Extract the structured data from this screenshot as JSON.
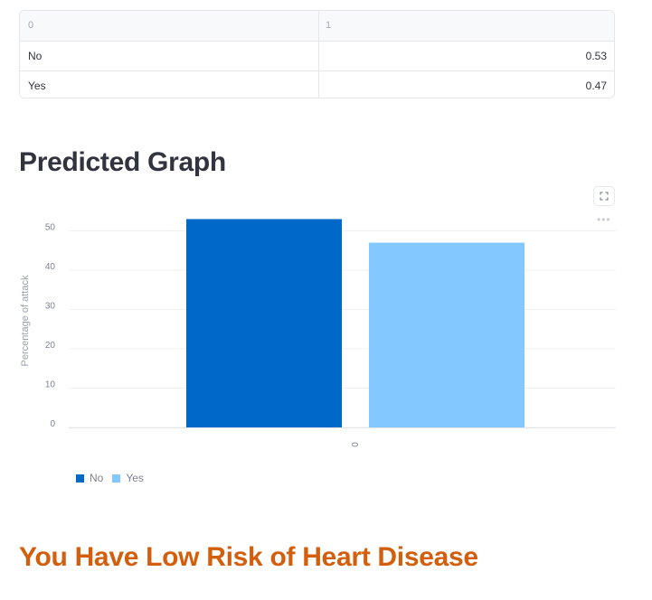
{
  "table": {
    "headers": [
      "0",
      "1"
    ],
    "rows": [
      {
        "label": "No",
        "value": "0.53"
      },
      {
        "label": "Yes",
        "value": "0.47"
      }
    ]
  },
  "graph_heading": "Predicted Graph",
  "result_heading": "You Have Low Risk of Heart Disease",
  "icons": {
    "fullscreen": "fullscreen-icon",
    "menu": "more-horizontal-icon"
  },
  "chart_data": {
    "type": "bar",
    "categories": [
      "0"
    ],
    "series": [
      {
        "name": "No",
        "values": [
          53
        ],
        "color": "#0068c9"
      },
      {
        "name": "Yes",
        "values": [
          47
        ],
        "color": "#83c9ff"
      }
    ],
    "xlabel": "",
    "ylabel": "Percentage of attack",
    "ylim": [
      0,
      55
    ],
    "yticks": [
      0,
      10,
      20,
      30,
      40,
      50
    ],
    "grid": true,
    "legend": "bottom-left"
  }
}
